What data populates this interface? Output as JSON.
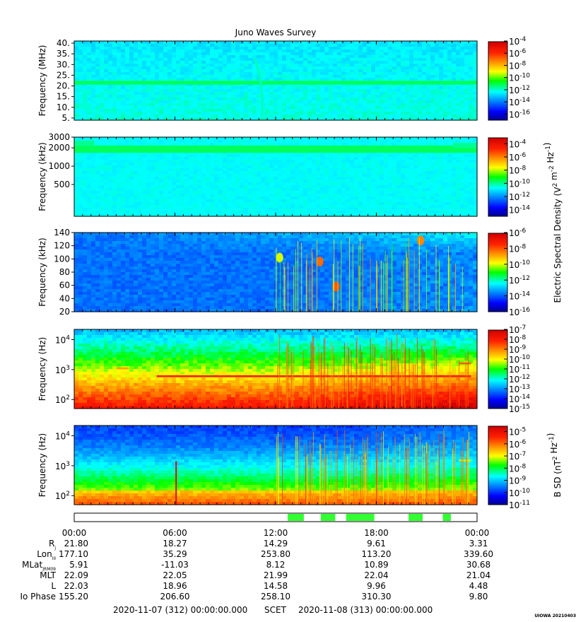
{
  "title": "Juno Waves Survey",
  "corner_tag": "UIOWA 20210403",
  "chart_data": [
    {
      "type": "heatmap",
      "panel": 1,
      "ylabel": "Frequency (MHz)",
      "y_scale": "linear",
      "ylim": [
        4,
        41
      ],
      "yticks": [
        5,
        10,
        15,
        20,
        25,
        30,
        35,
        40
      ],
      "ytick_labels": [
        "5.",
        "10.",
        "15.",
        "20.",
        "25.",
        "30.",
        "35.",
        "40."
      ],
      "colorbar": {
        "scale": "log",
        "range_exp": [
          -17,
          -4
        ],
        "ticks_exp": [
          -4,
          -6,
          -8,
          -10,
          -12,
          -14,
          -16
        ],
        "label": ""
      },
      "features": [
        {
          "kind": "hband",
          "y": 21.5,
          "halfwidth": 0.9,
          "level": 0.45,
          "x_from": 0.0,
          "x_to": 1.0
        },
        {
          "kind": "arc",
          "x": 0.462,
          "y_top": 33,
          "y_bottom": 6,
          "level": 0.4
        }
      ],
      "background_level": 0.34
    },
    {
      "type": "heatmap",
      "panel": 2,
      "ylabel": "Frequency (kHz)",
      "y_scale": "log",
      "ylim": [
        150,
        3000
      ],
      "yticks": [
        500,
        1000,
        2000,
        3000
      ],
      "ytick_labels": [
        "500",
        "1000",
        "2000",
        "3000"
      ],
      "colorbar": {
        "scale": "log",
        "range_exp": [
          -15,
          -3
        ],
        "ticks_exp": [
          -4,
          -6,
          -8,
          -10,
          -12,
          -14
        ],
        "label": ""
      },
      "features": [
        {
          "kind": "hband",
          "y": 1900,
          "halfwidth": 0.06,
          "level": 0.45,
          "x_from": 0.0,
          "x_to": 1.0
        },
        {
          "kind": "hband",
          "y": 2400,
          "halfwidth": 0.04,
          "level": 0.42,
          "x_from": 0.0,
          "x_to": 0.05
        },
        {
          "kind": "hband",
          "y": 2200,
          "halfwidth": 0.04,
          "level": 0.42,
          "x_from": 0.94,
          "x_to": 1.0
        }
      ],
      "background_level": 0.36
    },
    {
      "type": "heatmap",
      "panel": 3,
      "ylabel": "Frequency (kHz)",
      "y_scale": "linear",
      "ylim": [
        20,
        140
      ],
      "yticks": [
        20,
        40,
        60,
        80,
        100,
        120,
        140
      ],
      "ytick_labels": [
        "20",
        "40",
        "60",
        "80",
        "100",
        "120",
        "140"
      ],
      "colorbar": {
        "scale": "log",
        "range_exp": [
          -16,
          -6
        ],
        "ticks_exp": [
          -6,
          -8,
          -10,
          -12,
          -14,
          -16
        ],
        "label": "Electric Spectral Density (V^2 m^-2 Hz^-1)"
      },
      "features": [
        {
          "kind": "blob",
          "x": 0.86,
          "y": 128,
          "level": 0.75
        },
        {
          "kind": "blob",
          "x": 0.65,
          "y": 58,
          "level": 0.8
        },
        {
          "kind": "blob",
          "x": 0.61,
          "y": 96,
          "level": 0.78
        },
        {
          "kind": "blob",
          "x": 0.51,
          "y": 102,
          "level": 0.6
        }
      ],
      "background_level": 0.22
    },
    {
      "type": "heatmap",
      "panel": 4,
      "ylabel": "Frequency (Hz)",
      "y_scale": "log",
      "ylim": [
        50,
        22000
      ],
      "yticks": [
        100,
        1000,
        10000
      ],
      "ytick_labels": [
        "10^2",
        "10^3",
        "10^4"
      ],
      "colorbar": {
        "scale": "log",
        "range_exp": [
          -15,
          -7
        ],
        "ticks_exp": [
          -7,
          -8,
          -9,
          -10,
          -11,
          -12,
          -13,
          -14,
          -15
        ],
        "label": ""
      },
      "features": [
        {
          "kind": "hband",
          "y": 600,
          "halfwidth": 0.03,
          "level": 0.88,
          "x_from": 0.205,
          "x_to": 0.985
        },
        {
          "kind": "hband",
          "y": 1100,
          "halfwidth": 0.03,
          "level": 0.72,
          "x_from": 0.105,
          "x_to": 0.135
        },
        {
          "kind": "hband",
          "y": 1600,
          "halfwidth": 0.03,
          "level": 0.8,
          "x_from": 0.955,
          "x_to": 0.985
        }
      ],
      "background_level": 0.5
    },
    {
      "type": "heatmap",
      "panel": 5,
      "ylabel": "Frequency (Hz)",
      "y_scale": "log",
      "ylim": [
        50,
        22000
      ],
      "yticks": [
        100,
        1000,
        10000
      ],
      "ytick_labels": [
        "10^2",
        "10^3",
        "10^4"
      ],
      "colorbar": {
        "scale": "log",
        "range_exp": [
          -11,
          -4.5
        ],
        "ticks_exp": [
          -5,
          -6,
          -7,
          -8,
          -9,
          -10,
          -11
        ],
        "label": "B SD (nT^2 Hz^-1)"
      },
      "features": [
        {
          "kind": "vline",
          "x": 0.253,
          "level": 0.95
        },
        {
          "kind": "hband",
          "y": 1500,
          "halfwidth": 0.03,
          "level": 0.6,
          "x_from": 0.955,
          "x_to": 0.985
        }
      ],
      "background_level": 0.5
    }
  ],
  "data_flags": [
    {
      "from": 0.53,
      "to": 0.57
    },
    {
      "from": 0.612,
      "to": 0.648
    },
    {
      "from": 0.675,
      "to": 0.745
    },
    {
      "from": 0.83,
      "to": 0.865
    },
    {
      "from": 0.915,
      "to": 0.935
    }
  ],
  "time_axis": {
    "ticks": [
      "00:00",
      "06:00",
      "12:00",
      "18:00",
      "00:00"
    ],
    "tick_fractions": [
      0,
      0.25,
      0.5,
      0.75,
      1.0
    ],
    "rows": [
      {
        "label": "Rj",
        "sub": "j",
        "base": "R",
        "values": [
          "21.80",
          "18.27",
          "14.29",
          "9.61",
          "3.31"
        ]
      },
      {
        "label": "LonIII",
        "sub": "III",
        "base": "Lon",
        "values": [
          "177.10",
          "35.29",
          "253.80",
          "113.20",
          "339.60"
        ]
      },
      {
        "label": "MLatJRM09",
        "sub": "JRM09",
        "base": "MLat",
        "values": [
          "5.91",
          "-11.03",
          "8.12",
          "10.89",
          "30.68"
        ]
      },
      {
        "label": "MLT",
        "sub": "",
        "base": "MLT",
        "values": [
          "22.09",
          "22.05",
          "21.99",
          "22.04",
          "21.04"
        ]
      },
      {
        "label": "L",
        "sub": "",
        "base": "L",
        "values": [
          "22.03",
          "18.96",
          "14.58",
          "9.96",
          "4.48"
        ]
      },
      {
        "label": "Io Phase",
        "sub": "",
        "base": "Io Phase",
        "values": [
          "155.20",
          "206.60",
          "258.10",
          "310.30",
          "9.80"
        ]
      }
    ],
    "start": "2020-11-07 (312) 00:00:00.000",
    "scet_label": "SCET",
    "end": "2020-11-08 (313) 00:00:00.000"
  }
}
